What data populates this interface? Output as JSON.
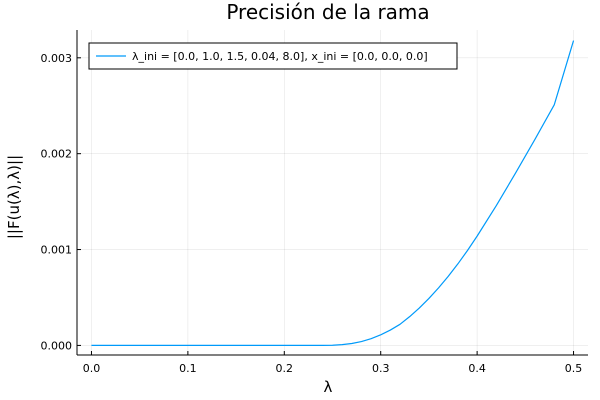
{
  "chart_data": {
    "type": "line",
    "title": "Precisión de la rama",
    "xlabel": "λ",
    "ylabel": "||F(u(λ),λ)||",
    "xlim": [
      -0.015,
      0.515
    ],
    "ylim": [
      -0.0001,
      0.00329
    ],
    "x_ticks": [
      0.0,
      0.1,
      0.2,
      0.3,
      0.4,
      0.5
    ],
    "x_tick_labels": [
      "0.0",
      "0.1",
      "0.2",
      "0.3",
      "0.4",
      "0.5"
    ],
    "y_ticks": [
      0.0,
      0.001,
      0.002,
      0.003
    ],
    "y_tick_labels": [
      "0.000",
      "0.001",
      "0.002",
      "0.003"
    ],
    "grid": true,
    "legend_position": "top-left",
    "series": [
      {
        "name": "λ_ini = [0.0, 1.0, 1.5, 0.04, 8.0], x_ini = [0.0, 0.0, 0.0]",
        "color": "#009AFA",
        "x": [
          0.0,
          0.05,
          0.1,
          0.15,
          0.2,
          0.24,
          0.25,
          0.26,
          0.27,
          0.28,
          0.29,
          0.3,
          0.31,
          0.32,
          0.33,
          0.34,
          0.35,
          0.36,
          0.37,
          0.38,
          0.39,
          0.4,
          0.42,
          0.44,
          0.46,
          0.48,
          0.5
        ],
        "y": [
          0.0,
          0.0,
          0.0,
          0.0,
          0.0,
          0.0,
          2e-06,
          8e-06,
          2e-05,
          4e-05,
          7e-05,
          0.00011,
          0.00016,
          0.00022,
          0.0003,
          0.00039,
          0.00049,
          0.0006,
          0.00072,
          0.00085,
          0.00099,
          0.00114,
          0.00146,
          0.0018,
          0.00215,
          0.00251,
          0.00318
        ]
      }
    ]
  }
}
